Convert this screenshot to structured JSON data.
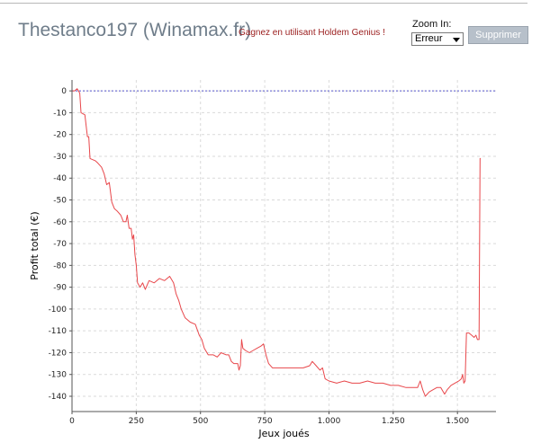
{
  "header": {
    "title": "Thestanco197 (Winamax.fr)",
    "promo_link": "Gagnez en utilisant Holdem Genius !",
    "zoom_label": "Zoom In:",
    "zoom_value": "Erreur",
    "delete_button": "Supprimer"
  },
  "colors": {
    "line": "#e8474b",
    "zero_line": "#5555cc",
    "grid": "#dadada"
  },
  "chart_data": {
    "type": "line",
    "xlabel": "Jeux joués",
    "ylabel": "Profit total (€)",
    "xlim": [
      0,
      1650
    ],
    "ylim": [
      -147,
      5
    ],
    "x_ticks": [
      0,
      250,
      500,
      750,
      1000,
      1250,
      1500
    ],
    "x_tick_labels": [
      "0",
      "250",
      "500",
      "750",
      "1.000",
      "1.250",
      "1.500"
    ],
    "y_ticks": [
      0,
      -10,
      -20,
      -30,
      -40,
      -50,
      -60,
      -70,
      -80,
      -90,
      -100,
      -110,
      -120,
      -130,
      -140
    ],
    "y_tick_labels": [
      "0",
      "-10",
      "-20",
      "-30",
      "-40",
      "-50",
      "-60",
      "-70",
      "-80",
      "-90",
      "-100",
      "-110",
      "-120",
      "-130",
      "-140"
    ],
    "grid": true,
    "reference_line_y": 0,
    "series": [
      {
        "points": [
          [
            0,
            0
          ],
          [
            10,
            0
          ],
          [
            20,
            1
          ],
          [
            30,
            -1
          ],
          [
            35,
            -10
          ],
          [
            50,
            -11
          ],
          [
            60,
            -21
          ],
          [
            65,
            -21
          ],
          [
            70,
            -31
          ],
          [
            90,
            -32
          ],
          [
            100,
            -33
          ],
          [
            115,
            -35
          ],
          [
            125,
            -38
          ],
          [
            135,
            -43
          ],
          [
            145,
            -42
          ],
          [
            155,
            -51
          ],
          [
            165,
            -54
          ],
          [
            175,
            -55
          ],
          [
            190,
            -57
          ],
          [
            200,
            -60
          ],
          [
            210,
            -60
          ],
          [
            215,
            -57
          ],
          [
            222,
            -63
          ],
          [
            230,
            -63
          ],
          [
            235,
            -68
          ],
          [
            240,
            -66
          ],
          [
            245,
            -75
          ],
          [
            250,
            -80
          ],
          [
            255,
            -88
          ],
          [
            265,
            -90
          ],
          [
            275,
            -88
          ],
          [
            285,
            -91
          ],
          [
            300,
            -87
          ],
          [
            320,
            -88
          ],
          [
            340,
            -86
          ],
          [
            360,
            -87
          ],
          [
            380,
            -85
          ],
          [
            395,
            -88
          ],
          [
            405,
            -93
          ],
          [
            415,
            -96
          ],
          [
            425,
            -100
          ],
          [
            440,
            -104
          ],
          [
            460,
            -106
          ],
          [
            480,
            -107
          ],
          [
            495,
            -112
          ],
          [
            505,
            -114
          ],
          [
            515,
            -118
          ],
          [
            530,
            -121
          ],
          [
            550,
            -121
          ],
          [
            565,
            -122
          ],
          [
            580,
            -120
          ],
          [
            600,
            -121
          ],
          [
            610,
            -121
          ],
          [
            620,
            -124
          ],
          [
            630,
            -125
          ],
          [
            645,
            -125
          ],
          [
            650,
            -128
          ],
          [
            655,
            -126
          ],
          [
            660,
            -114
          ],
          [
            665,
            -118
          ],
          [
            675,
            -119
          ],
          [
            690,
            -120
          ],
          [
            705,
            -119
          ],
          [
            720,
            -118
          ],
          [
            735,
            -117
          ],
          [
            745,
            -116
          ],
          [
            755,
            -121
          ],
          [
            765,
            -125
          ],
          [
            780,
            -127
          ],
          [
            800,
            -127
          ],
          [
            825,
            -127
          ],
          [
            850,
            -127
          ],
          [
            875,
            -127
          ],
          [
            900,
            -127
          ],
          [
            925,
            -126
          ],
          [
            935,
            -124
          ],
          [
            950,
            -126
          ],
          [
            965,
            -128
          ],
          [
            975,
            -127
          ],
          [
            985,
            -132
          ],
          [
            1000,
            -133
          ],
          [
            1030,
            -134
          ],
          [
            1060,
            -133
          ],
          [
            1090,
            -134
          ],
          [
            1120,
            -134
          ],
          [
            1150,
            -133
          ],
          [
            1180,
            -134
          ],
          [
            1210,
            -134
          ],
          [
            1240,
            -135
          ],
          [
            1270,
            -135
          ],
          [
            1300,
            -136
          ],
          [
            1330,
            -136
          ],
          [
            1345,
            -136
          ],
          [
            1355,
            -133
          ],
          [
            1365,
            -137
          ],
          [
            1375,
            -140
          ],
          [
            1390,
            -138
          ],
          [
            1405,
            -137
          ],
          [
            1420,
            -136
          ],
          [
            1435,
            -136
          ],
          [
            1450,
            -139
          ],
          [
            1460,
            -137
          ],
          [
            1475,
            -135
          ],
          [
            1490,
            -134
          ],
          [
            1505,
            -133
          ],
          [
            1515,
            -132
          ],
          [
            1520,
            -130
          ],
          [
            1525,
            -134
          ],
          [
            1530,
            -133
          ],
          [
            1535,
            -111
          ],
          [
            1545,
            -111
          ],
          [
            1555,
            -112
          ],
          [
            1565,
            -113
          ],
          [
            1572,
            -112
          ],
          [
            1578,
            -114
          ],
          [
            1584,
            -114
          ],
          [
            1588,
            -31
          ],
          [
            1590,
            -31
          ]
        ]
      }
    ]
  }
}
